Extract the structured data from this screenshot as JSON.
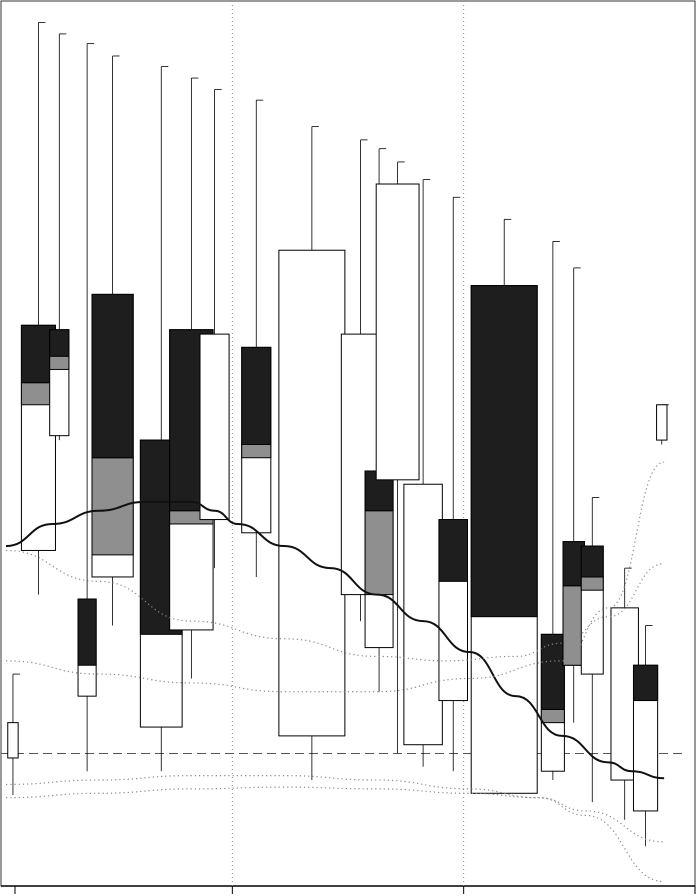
{
  "chart_data": {
    "type": "candlestick",
    "title": "",
    "xlabel": "",
    "ylabel": "",
    "grid": false,
    "ylim": [
      0,
      100
    ],
    "x_sections": 3,
    "colors": {
      "body_dark": "#1e1e1e",
      "body_mid": "#8f8f8f",
      "body_light": "#ffffff",
      "line": "#111111",
      "guide": "#888888"
    },
    "reference_level": 15.0,
    "candles": [
      {
        "x": 0.3,
        "high": 24.0,
        "low": 10.3,
        "open": 18.5,
        "close": 14.5,
        "dark": null,
        "mid": null
      },
      {
        "x": 1.4,
        "high": 97.8,
        "low": 33.0,
        "open": 38.0,
        "close": 63.5,
        "dark": [
          57.0,
          63.5
        ],
        "mid": [
          54.5,
          57.0
        ]
      },
      {
        "x": 2.3,
        "high": 96.5,
        "low": 50.5,
        "open": 51.0,
        "close": 63.0,
        "dark": [
          60.0,
          63.0
        ],
        "mid": [
          58.5,
          60.0
        ]
      },
      {
        "x": 3.5,
        "high": 95.4,
        "low": 13.0,
        "open": 21.5,
        "close": 32.5,
        "dark": [
          25.0,
          32.5
        ],
        "mid": null
      },
      {
        "x": 4.6,
        "high": 94.0,
        "low": 29.5,
        "open": 35.0,
        "close": 67.0,
        "dark": [
          48.5,
          67.0
        ],
        "mid": [
          37.5,
          48.5
        ]
      },
      {
        "x": 6.7,
        "high": 92.8,
        "low": 13.0,
        "open": 18.0,
        "close": 50.5,
        "dark": [
          28.5,
          50.5
        ],
        "mid": null
      },
      {
        "x": 8.0,
        "high": 91.5,
        "low": 23.5,
        "open": 29.0,
        "close": 63.0,
        "dark": [
          42.5,
          63.0
        ],
        "mid": [
          41.0,
          42.5
        ]
      },
      {
        "x": 9.0,
        "high": 90.2,
        "low": 36.0,
        "open": 41.5,
        "close": 62.5,
        "dark": null,
        "mid": null
      },
      {
        "x": 10.8,
        "high": 89.0,
        "low": 35.0,
        "open": 40.0,
        "close": 61.0,
        "dark": [
          50.0,
          61.0
        ],
        "mid": [
          48.5,
          50.0
        ]
      },
      {
        "x": 13.2,
        "high": 86.0,
        "low": 12.0,
        "open": 17.0,
        "close": 72.0,
        "dark": null,
        "mid": null
      },
      {
        "x": 15.3,
        "high": 84.5,
        "low": 30.0,
        "open": 33.0,
        "close": 62.5,
        "dark": null,
        "mid": null
      },
      {
        "x": 16.1,
        "high": 83.5,
        "low": 22.0,
        "open": 27.0,
        "close": 47.0,
        "dark": [
          42.5,
          47.0
        ],
        "mid": [
          33.0,
          42.5
        ]
      },
      {
        "x": 16.9,
        "high": 82.0,
        "low": 15.0,
        "open": 46.0,
        "close": 79.5,
        "dark": null,
        "mid": null
      },
      {
        "x": 18.0,
        "high": 80.0,
        "low": 13.5,
        "open": 16.0,
        "close": 45.5,
        "dark": null,
        "mid": null
      },
      {
        "x": 19.3,
        "high": 78.0,
        "low": 13.0,
        "open": 21.0,
        "close": 41.5,
        "dark": [
          34.5,
          41.5
        ],
        "mid": null
      },
      {
        "x": 21.5,
        "high": 75.5,
        "low": 11.0,
        "open": 10.5,
        "close": 68.0,
        "dark": [
          30.5,
          68.0
        ],
        "mid": null
      },
      {
        "x": 23.6,
        "high": 73.0,
        "low": 12.0,
        "open": 13.0,
        "close": 28.5,
        "dark": [
          20.0,
          28.5
        ],
        "mid": [
          18.5,
          20.0
        ]
      },
      {
        "x": 24.5,
        "high": 70.0,
        "low": 18.5,
        "open": 25.0,
        "close": 39.0,
        "dark": [
          34.0,
          39.0
        ],
        "mid": [
          25.0,
          34.0
        ]
      },
      {
        "x": 25.3,
        "high": 44.0,
        "low": 9.5,
        "open": 24.0,
        "close": 38.5,
        "dark": [
          35.0,
          38.5
        ],
        "mid": [
          33.5,
          35.0
        ]
      },
      {
        "x": 26.7,
        "high": 36.0,
        "low": 7.5,
        "open": 12.0,
        "close": 31.5,
        "dark": null,
        "mid": null
      },
      {
        "x": 27.6,
        "high": 29.5,
        "low": 4.5,
        "open": 8.5,
        "close": 25.0,
        "dark": [
          21.0,
          25.0
        ],
        "mid": null
      },
      {
        "x": 28.3,
        "high": 54.5,
        "low": 50.0,
        "open": 50.5,
        "close": 54.5,
        "dark": null,
        "mid": null
      }
    ],
    "series": [
      {
        "type": "line",
        "style": "solid",
        "x": [
          0,
          2,
          4,
          6,
          8,
          9,
          10,
          12,
          14,
          16,
          18,
          20,
          22,
          24,
          26,
          27,
          28.4
        ],
        "y": [
          38.5,
          41.0,
          42.5,
          43.5,
          43.5,
          42.5,
          41.0,
          38.5,
          36.0,
          33.0,
          30.0,
          26.5,
          21.5,
          17.0,
          14.0,
          13.0,
          12.2
        ]
      },
      {
        "type": "line",
        "style": "dotted",
        "x": [
          0,
          4,
          8,
          12,
          16,
          19,
          22,
          24,
          26,
          28.4
        ],
        "y": [
          38.0,
          34.5,
          30.0,
          28.0,
          26.0,
          25.5,
          26.0,
          27.5,
          30.5,
          36.5
        ]
      },
      {
        "type": "line",
        "style": "dotted",
        "x": [
          0,
          4,
          8,
          12,
          16,
          20,
          24,
          26,
          28.4
        ],
        "y": [
          25.5,
          24.0,
          23.0,
          22.0,
          22.0,
          23.5,
          25.5,
          31.5,
          48.0
        ]
      },
      {
        "type": "line",
        "style": "dotted",
        "x": [
          0,
          4,
          8,
          12,
          16,
          20,
          23,
          25,
          28.4
        ],
        "y": [
          11.5,
          12.0,
          12.5,
          12.5,
          12.0,
          11.0,
          10.0,
          8.5,
          5.0
        ]
      },
      {
        "type": "line",
        "style": "dotted",
        "x": [
          0,
          4,
          8,
          12,
          16,
          20,
          23,
          25,
          28.4
        ],
        "y": [
          10.0,
          10.5,
          11.0,
          11.2,
          11.0,
          10.5,
          10.0,
          8.0,
          0.5
        ]
      }
    ]
  }
}
